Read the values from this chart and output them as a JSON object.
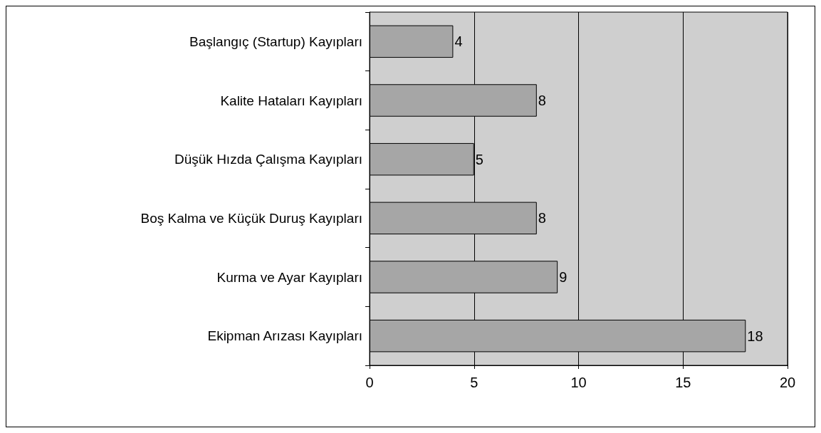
{
  "chart_data": {
    "type": "bar",
    "orientation": "horizontal",
    "categories": [
      "Başlangıç (Startup) Kayıpları",
      "Kalite Hataları Kayıpları",
      "Düşük Hızda Çalışma Kayıpları",
      "Boş Kalma ve Küçük Duruş Kayıpları",
      "Kurma ve Ayar Kayıpları",
      "Ekipman Arızası Kayıpları"
    ],
    "values": [
      4,
      8,
      5,
      8,
      9,
      18
    ],
    "color": "#a6a6a6",
    "xlim": [
      0,
      20
    ],
    "xticks": [
      0,
      5,
      10,
      15,
      20
    ],
    "grid": "x",
    "data_labels": true
  }
}
